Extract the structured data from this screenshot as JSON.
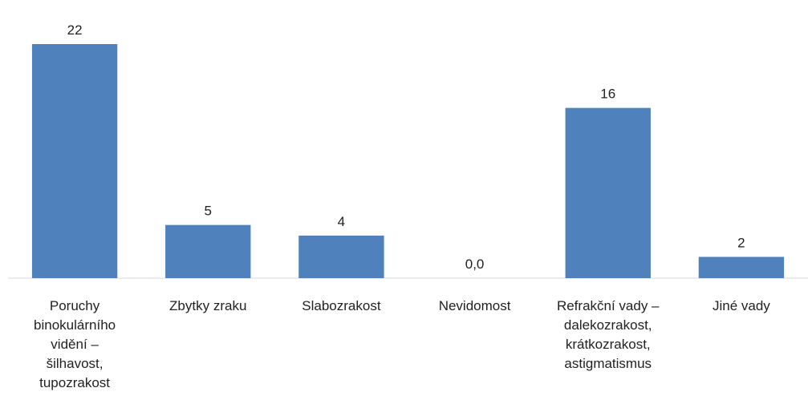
{
  "chart_data": {
    "type": "bar",
    "categories": [
      "Poruchy binokulárního vidění – šilhavost, tupozrakost",
      "Zbytky zraku",
      "Slabozrakost",
      "Nevidomost",
      "Refrakční vady – dalekozrakost, krátkozrakost, astigmatismus",
      "Jiné vady"
    ],
    "values": [
      22,
      5,
      4,
      0,
      16,
      2
    ],
    "value_labels": [
      "22",
      "5",
      "4",
      "0,0",
      "16",
      "2"
    ],
    "color": "#4f81bd"
  }
}
